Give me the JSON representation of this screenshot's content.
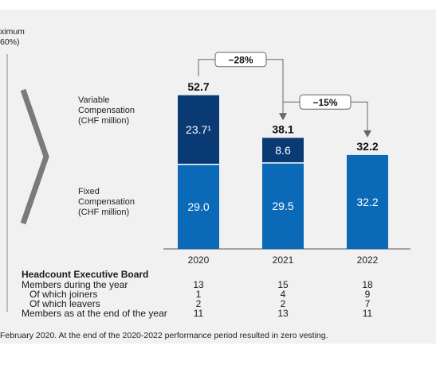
{
  "corner_text": {
    "line1": "ximum",
    "line2": "60%)"
  },
  "chart_data": {
    "type": "bar",
    "stacked": true,
    "categories": [
      "2020",
      "2021",
      "2022"
    ],
    "series": [
      {
        "name": "Fixed Compensation (CHF million)",
        "values": [
          29.0,
          29.5,
          32.2
        ],
        "labels": [
          "29.0",
          "29.5",
          "32.2"
        ],
        "color": "#0b6ab8"
      },
      {
        "name": "Variable Compensation (CHF million)",
        "values": [
          23.7,
          8.6,
          0
        ],
        "labels": [
          "23.7¹",
          "8.6",
          ""
        ],
        "color": "#0a3a73"
      }
    ],
    "totals": [
      52.7,
      38.1,
      32.2
    ],
    "total_labels": [
      "52.7",
      "38.1",
      "32.2"
    ],
    "ylim": [
      0,
      60
    ],
    "changes": [
      {
        "from": "2020",
        "to": "2021",
        "label": "−28%"
      },
      {
        "from": "2021",
        "to": "2022",
        "label": "−15%"
      }
    ],
    "series_labels": {
      "variable": [
        "Variable",
        "Compensation",
        "(CHF million)"
      ],
      "fixed": [
        "Fixed",
        "Compensation",
        "(CHF million)"
      ]
    }
  },
  "headcount": {
    "title": "Headcount Executive Board",
    "rows": [
      {
        "label": "Members during the year",
        "values": [
          "13",
          "15",
          "18"
        ]
      },
      {
        "label": "Of which joiners",
        "values": [
          "1",
          "4",
          "9"
        ]
      },
      {
        "label": "Of which leavers",
        "values": [
          "2",
          "2",
          "7"
        ]
      },
      {
        "label": "Members as at the end of the year",
        "values": [
          "11",
          "13",
          "11"
        ]
      }
    ]
  },
  "footnote": "February 2020. At the end of the 2020-2022 performance period resulted in zero vesting.",
  "colors": {
    "fixed": "#0b6ab8",
    "variable": "#0a3a73",
    "background": "#f1f1f1",
    "chevron": "#7a7a7a",
    "arrow": "#666666"
  }
}
